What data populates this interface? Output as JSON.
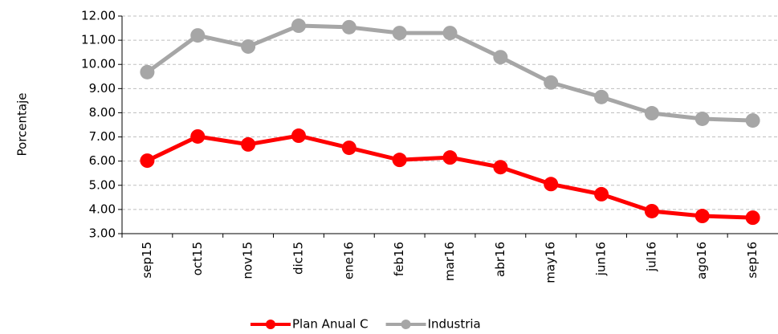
{
  "chart_data": {
    "type": "line",
    "y_label": "Porcentaje",
    "categories": [
      "sep15",
      "oct15",
      "nov15",
      "dic15",
      "ene16",
      "feb16",
      "mar16",
      "abr16",
      "may16",
      "jun16",
      "jul16",
      "ago16",
      "sep16"
    ],
    "series": [
      {
        "name": "Plan Anual C",
        "color": "#ff0000",
        "values": [
          6.02,
          7.02,
          6.69,
          7.05,
          6.55,
          6.05,
          6.15,
          5.75,
          5.05,
          4.63,
          3.93,
          3.73,
          3.66
        ]
      },
      {
        "name": "Industria",
        "color": "#a6a6a6",
        "values": [
          9.68,
          11.2,
          10.74,
          11.6,
          11.54,
          11.3,
          11.3,
          10.3,
          9.25,
          8.65,
          7.98,
          7.75,
          7.68
        ]
      }
    ],
    "ylim": [
      3,
      12
    ],
    "yticks": [
      {
        "value": 3,
        "label": "3.00"
      },
      {
        "value": 4,
        "label": "4.00"
      },
      {
        "value": 5,
        "label": "5.00"
      },
      {
        "value": 6,
        "label": "6.00"
      },
      {
        "value": 7,
        "label": "7.00"
      },
      {
        "value": 8,
        "label": "8.00"
      },
      {
        "value": 9,
        "label": "9.00"
      },
      {
        "value": 10,
        "label": "10.00"
      },
      {
        "value": 11,
        "label": "11.00"
      },
      {
        "value": 12,
        "label": "12.00"
      }
    ],
    "grid": true,
    "legend": "bottom"
  }
}
